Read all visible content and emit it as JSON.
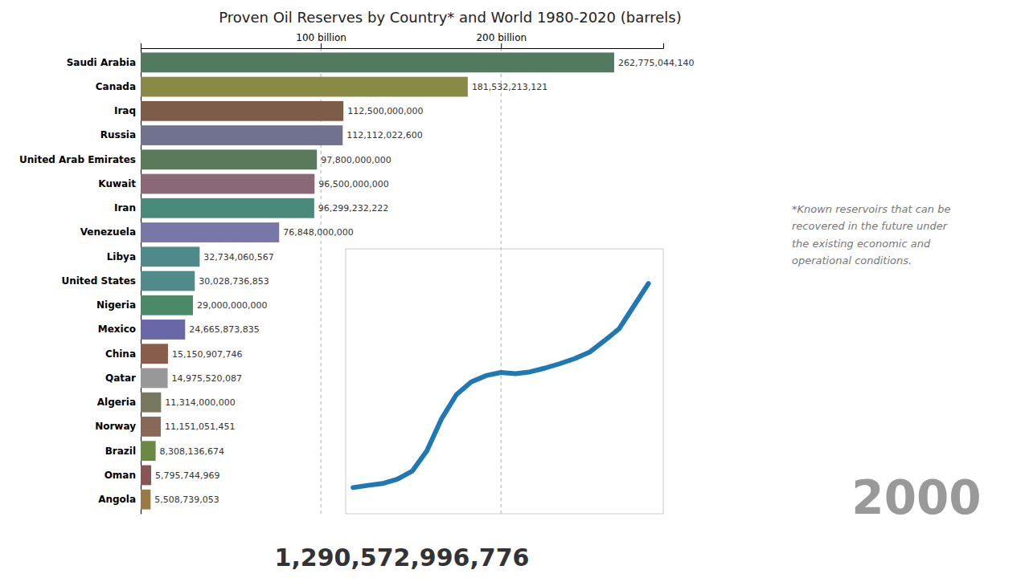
{
  "chart_data": [
    {
      "type": "bar",
      "orientation": "horizontal",
      "title": "Proven Oil Reserves by Country* and World 1980-2020 (barrels)",
      "categories": [
        "Saudi Arabia",
        "Canada",
        "Iraq",
        "Russia",
        "United Arab Emirates",
        "Kuwait",
        "Iran",
        "Venezuela",
        "Libya",
        "United States",
        "Nigeria",
        "Mexico",
        "China",
        "Qatar",
        "Algeria",
        "Norway",
        "Brazil",
        "Oman",
        "Angola"
      ],
      "values": [
        262775044140,
        181532213121,
        112500000000,
        112112022600,
        97800000000,
        96500000000,
        96299232222,
        76848000000,
        32734060567,
        30028736853,
        29000000000,
        24665873835,
        15150907746,
        14975520087,
        11314000000,
        11151051451,
        8308136674,
        5795744969,
        5508739053
      ],
      "value_labels": [
        "262,775,044,140",
        "181,532,213,121",
        "112,500,000,000",
        "112,112,022,600",
        "97,800,000,000",
        "96,500,000,000",
        "96,299,232,222",
        "76,848,000,000",
        "32,734,060,567",
        "30,028,736,853",
        "29,000,000,000",
        "24,665,873,835",
        "15,150,907,746",
        "14,975,520,087",
        "11,314,000,000",
        "11,151,051,451",
        "8,308,136,674",
        "5,795,744,969",
        "5,508,739,053"
      ],
      "data_labels": true,
      "colors": [
        "#527a5f",
        "#8a8a47",
        "#7d5c4a",
        "#717190",
        "#5a7a5c",
        "#8a6878",
        "#4a8a7a",
        "#7878a8",
        "#4e8a8a",
        "#508a8a",
        "#4a8a68",
        "#6868a8",
        "#8a5c4a",
        "#989898",
        "#787860",
        "#8a6858",
        "#6a8a44",
        "#8a5454",
        "#9a7a44"
      ],
      "xlim": [
        0,
        290000000000
      ],
      "xticks": [
        {
          "value": 100000000000,
          "label": "100 billion"
        },
        {
          "value": 200000000000,
          "label": "200 billion"
        }
      ],
      "grid": true,
      "annotations": [
        {
          "text": "1,290,572,996,776"
        },
        {
          "text": "2000"
        },
        {
          "text": "*Known reservoirs that can be\nrecovered in the future under\nthe existing economic and\noperational conditions."
        }
      ]
    },
    {
      "type": "line",
      "x": [
        1980,
        1981,
        1982,
        1983,
        1984,
        1985,
        1986,
        1987,
        1988,
        1989,
        1990,
        1991,
        1992,
        1993,
        1994,
        1995,
        1996,
        1997,
        1998,
        1999,
        2000
      ],
      "values": [
        643,
        650,
        656,
        670,
        695,
        760,
        862,
        938,
        978,
        998,
        1008,
        1004,
        1010,
        1022,
        1036,
        1052,
        1072,
        1108,
        1146,
        1218,
        1290
      ],
      "xlim": [
        1979.5,
        2001.0
      ],
      "ylim": [
        560,
        1400
      ],
      "tick_labels": false
    }
  ]
}
